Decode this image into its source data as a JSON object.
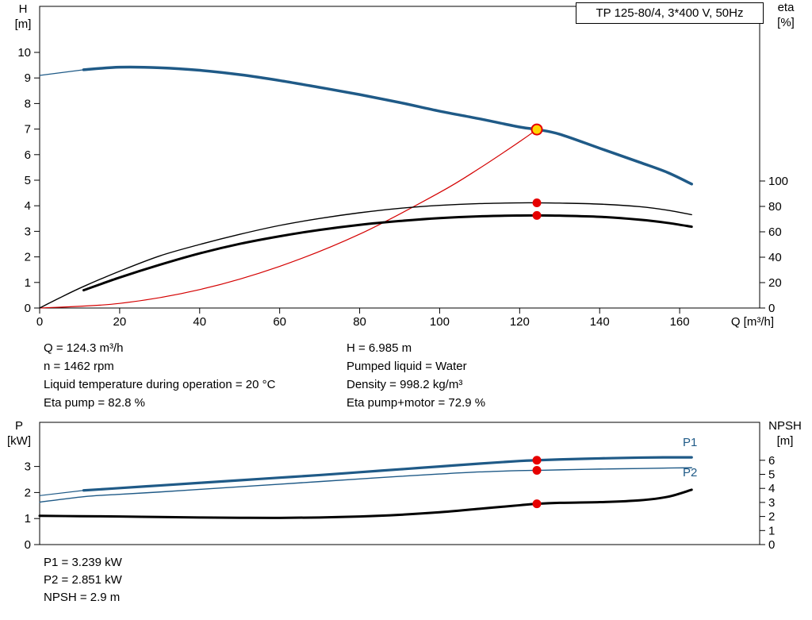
{
  "title_box": {
    "label": "TP 125-80/4, 3*400 V, 50Hz"
  },
  "axis_titles": {
    "top_left_1": "H",
    "top_left_2": "[m]",
    "top_right_1": "eta",
    "top_right_2": "[%]",
    "x": "Q [m³/h]",
    "bottom_left_1": "P",
    "bottom_left_2": "[kW]",
    "bottom_right_1": "NPSH",
    "bottom_right_2": "[m]"
  },
  "series_labels": {
    "p1": "P1",
    "p2": "P2"
  },
  "info_top": {
    "left": [
      "Q = 124.3 m³/h",
      "n = 1462 rpm",
      "Liquid temperature during operation = 20 °C",
      "Eta pump = 82.8 %"
    ],
    "right": [
      "H = 6.985 m",
      "Pumped liquid = Water",
      "Density = 998.2 kg/m³",
      "Eta pump+motor = 72.9 %"
    ]
  },
  "info_bottom": [
    "P1 = 3.239 kW",
    "P2 = 2.851 kW",
    "NPSH = 2.9 m"
  ],
  "colors": {
    "curve_blue": "#1f5a87",
    "curve_black": "#000000",
    "curve_red": "#d40000",
    "dot_red": "#e60000",
    "duty_fill": "#ffd500"
  },
  "chart_data": [
    {
      "type": "line",
      "name": "qh-eta-chart",
      "title": "TP 125-80/4, 3*400 V, 50Hz",
      "xlabel": "Q [m³/h]",
      "x_range": [
        0,
        180
      ],
      "x_ticks": [
        0,
        20,
        40,
        60,
        80,
        100,
        120,
        140,
        160
      ],
      "left_axis": {
        "label": "H [m]",
        "ticks": [
          0,
          1,
          2,
          3,
          4,
          5,
          6,
          7,
          8,
          9,
          10
        ]
      },
      "right_axis": {
        "label": "eta [%]",
        "ticks": [
          0,
          20,
          40,
          60,
          80,
          100
        ]
      },
      "series": [
        {
          "name": "system-curve",
          "axis": "left",
          "color": "#d40000",
          "width": 1.2,
          "points": [
            [
              0,
              0
            ],
            [
              20,
              0.18
            ],
            [
              40,
              0.72
            ],
            [
              60,
              1.63
            ],
            [
              80,
              2.89
            ],
            [
              100,
              4.52
            ],
            [
              110,
              5.47
            ],
            [
              120,
              6.51
            ],
            [
              124.3,
              6.985
            ]
          ]
        },
        {
          "name": "pump-curve-h",
          "axis": "left",
          "color": "#1f5a87",
          "width": 3.5,
          "lead": [
            [
              0,
              9.1
            ],
            [
              11,
              9.32
            ]
          ],
          "points": [
            [
              11,
              9.32
            ],
            [
              20,
              9.42
            ],
            [
              30,
              9.4
            ],
            [
              40,
              9.3
            ],
            [
              50,
              9.13
            ],
            [
              60,
              8.9
            ],
            [
              70,
              8.63
            ],
            [
              80,
              8.35
            ],
            [
              90,
              8.04
            ],
            [
              100,
              7.7
            ],
            [
              110,
              7.4
            ],
            [
              120,
              7.08
            ],
            [
              124.3,
              6.985
            ],
            [
              130,
              6.8
            ],
            [
              140,
              6.25
            ],
            [
              150,
              5.7
            ],
            [
              157,
              5.3
            ],
            [
              163,
              4.85
            ]
          ]
        },
        {
          "name": "eta-pump-curve",
          "axis": "right",
          "color": "#000000",
          "width": 1.4,
          "points": [
            [
              0,
              0
            ],
            [
              5,
              8
            ],
            [
              11,
              17
            ],
            [
              20,
              29
            ],
            [
              30,
              41
            ],
            [
              40,
              50
            ],
            [
              50,
              58
            ],
            [
              60,
              65
            ],
            [
              70,
              70.5
            ],
            [
              80,
              75
            ],
            [
              90,
              78.5
            ],
            [
              100,
              80.8
            ],
            [
              110,
              82.2
            ],
            [
              120,
              82.8
            ],
            [
              124.3,
              82.8
            ],
            [
              130,
              82.6
            ],
            [
              140,
              81.8
            ],
            [
              150,
              79.8
            ],
            [
              157,
              77
            ],
            [
              163,
              73.5
            ]
          ]
        },
        {
          "name": "eta-pump-motor-curve",
          "axis": "right",
          "color": "#000000",
          "width": 3,
          "points": [
            [
              11,
              14
            ],
            [
              20,
              24
            ],
            [
              30,
              34
            ],
            [
              40,
              43
            ],
            [
              50,
              50.5
            ],
            [
              60,
              56.5
            ],
            [
              70,
              61.5
            ],
            [
              80,
              65.5
            ],
            [
              90,
              68.5
            ],
            [
              100,
              70.8
            ],
            [
              110,
              72.2
            ],
            [
              120,
              72.85
            ],
            [
              124.3,
              72.9
            ],
            [
              130,
              72.7
            ],
            [
              140,
              71.8
            ],
            [
              150,
              69.5
            ],
            [
              157,
              67
            ],
            [
              163,
              64
            ]
          ]
        }
      ],
      "markers": [
        {
          "type": "duty",
          "q": 124.3,
          "value": 6.985,
          "axis": "left"
        },
        {
          "type": "dot",
          "q": 124.3,
          "value": 82.8,
          "axis": "right"
        },
        {
          "type": "dot",
          "q": 124.3,
          "value": 72.9,
          "axis": "right"
        }
      ]
    },
    {
      "type": "line",
      "name": "power-npsh-chart",
      "title": "",
      "xlabel": "",
      "x_range": [
        0,
        180
      ],
      "x_ticks": [],
      "left_axis": {
        "label": "P [kW]",
        "ticks": [
          0,
          1,
          2,
          3
        ]
      },
      "right_axis": {
        "label": "NPSH [m]",
        "ticks": [
          0,
          1,
          2,
          3,
          4,
          5,
          6
        ]
      },
      "series": [
        {
          "name": "p1-curve",
          "axis": "left",
          "color": "#1f5a87",
          "width": 3.2,
          "lead": [
            [
              0,
              1.88
            ],
            [
              11,
              2.08
            ]
          ],
          "points": [
            [
              11,
              2.08
            ],
            [
              20,
              2.17
            ],
            [
              30,
              2.27
            ],
            [
              40,
              2.37
            ],
            [
              50,
              2.47
            ],
            [
              60,
              2.57
            ],
            [
              70,
              2.67
            ],
            [
              80,
              2.78
            ],
            [
              90,
              2.89
            ],
            [
              100,
              3.0
            ],
            [
              110,
              3.11
            ],
            [
              120,
              3.21
            ],
            [
              124.3,
              3.239
            ],
            [
              130,
              3.27
            ],
            [
              140,
              3.31
            ],
            [
              150,
              3.34
            ],
            [
              157,
              3.35
            ],
            [
              163,
              3.35
            ]
          ]
        },
        {
          "name": "p2-curve",
          "axis": "left",
          "color": "#1f5a87",
          "width": 1.4,
          "points": [
            [
              0,
              1.63
            ],
            [
              11,
              1.84
            ],
            [
              20,
              1.93
            ],
            [
              30,
              2.02
            ],
            [
              40,
              2.12
            ],
            [
              50,
              2.22
            ],
            [
              60,
              2.32
            ],
            [
              70,
              2.42
            ],
            [
              80,
              2.52
            ],
            [
              90,
              2.62
            ],
            [
              100,
              2.71
            ],
            [
              110,
              2.79
            ],
            [
              120,
              2.84
            ],
            [
              124.3,
              2.851
            ],
            [
              130,
              2.87
            ],
            [
              140,
              2.9
            ],
            [
              150,
              2.92
            ],
            [
              157,
              2.94
            ],
            [
              163,
              2.95
            ]
          ]
        },
        {
          "name": "npsh-curve",
          "axis": "right",
          "color": "#000000",
          "width": 3,
          "points": [
            [
              0,
              2.05
            ],
            [
              10,
              2.02
            ],
            [
              20,
              2.0
            ],
            [
              30,
              1.96
            ],
            [
              40,
              1.93
            ],
            [
              50,
              1.91
            ],
            [
              60,
              1.9
            ],
            [
              70,
              1.93
            ],
            [
              80,
              2.0
            ],
            [
              90,
              2.12
            ],
            [
              100,
              2.3
            ],
            [
              110,
              2.55
            ],
            [
              120,
              2.8
            ],
            [
              124.3,
              2.9
            ],
            [
              130,
              2.97
            ],
            [
              140,
              3.02
            ],
            [
              150,
              3.15
            ],
            [
              157,
              3.4
            ],
            [
              163,
              3.9
            ]
          ]
        }
      ],
      "markers": [
        {
          "type": "dot",
          "q": 124.3,
          "value": 3.239,
          "axis": "left"
        },
        {
          "type": "dot",
          "q": 124.3,
          "value": 2.851,
          "axis": "left"
        },
        {
          "type": "dot",
          "q": 124.3,
          "value": 2.9,
          "axis": "right"
        }
      ]
    }
  ]
}
